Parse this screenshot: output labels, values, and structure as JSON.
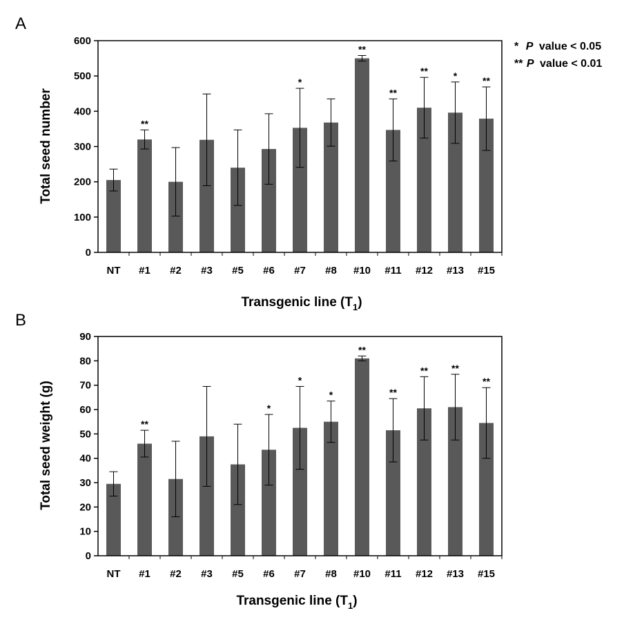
{
  "legend": {
    "line1_stars": "*",
    "line1_p": "P",
    "line1_rest": "value < 0.05",
    "line2_stars": "**",
    "line2_p": "P",
    "line2_rest": "value < 0.01"
  },
  "chart_data": [
    {
      "panel": "A",
      "type": "bar",
      "title": "",
      "xlabel": "Transgenic line (T",
      "xlabel_sub": "1",
      "xlabel_end": ")",
      "ylabel": "Total seed number",
      "ylim": [
        0,
        600
      ],
      "yticks": [
        0,
        100,
        200,
        300,
        400,
        500,
        600
      ],
      "grid": false,
      "bar_color": "#595959",
      "categories": [
        "NT",
        "#1",
        "#2",
        "#3",
        "#5",
        "#6",
        "#7",
        "#8",
        "#10",
        "#11",
        "#12",
        "#13",
        "#15"
      ],
      "values": [
        205,
        320,
        200,
        319,
        240,
        293,
        353,
        368,
        550,
        347,
        410,
        396,
        379
      ],
      "errors": [
        31,
        27,
        97,
        130,
        107,
        100,
        112,
        67,
        8,
        88,
        86,
        87,
        90
      ],
      "significance": [
        "",
        "**",
        "",
        "",
        "",
        "",
        "*",
        "",
        "**",
        "**",
        "**",
        "*",
        "**"
      ]
    },
    {
      "panel": "B",
      "type": "bar",
      "title": "",
      "xlabel": "Transgenic line (T",
      "xlabel_sub": "1",
      "xlabel_end": ")",
      "ylabel": "Total seed weight (g)",
      "ylim": [
        0,
        90
      ],
      "yticks": [
        0,
        10,
        20,
        30,
        40,
        50,
        60,
        70,
        80,
        90
      ],
      "grid": false,
      "bar_color": "#595959",
      "categories": [
        "NT",
        "#1",
        "#2",
        "#3",
        "#5",
        "#6",
        "#7",
        "#8",
        "#10",
        "#11",
        "#12",
        "#13",
        "#15"
      ],
      "values": [
        29.5,
        46,
        31.5,
        49,
        37.5,
        43.5,
        52.5,
        55,
        81,
        51.5,
        60.5,
        61,
        54.5
      ],
      "errors": [
        5,
        5.5,
        15.5,
        20.5,
        16.5,
        14.5,
        17,
        8.5,
        1,
        13,
        13,
        13.5,
        14.5
      ],
      "significance": [
        "",
        "**",
        "",
        "",
        "",
        "*",
        "*",
        "*",
        "**",
        "**",
        "**",
        "**",
        "**"
      ]
    }
  ]
}
